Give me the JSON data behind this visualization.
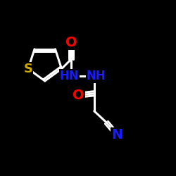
{
  "bg_color": "#000000",
  "white": "#ffffff",
  "S_color": "#ccaa00",
  "O_color": "#ff0000",
  "N_color": "#1a1aff",
  "bond_lw": 2.2,
  "figsize": [
    2.5,
    2.5
  ],
  "dpi": 100,
  "xlim": [
    0,
    10
  ],
  "ylim": [
    0,
    10
  ]
}
